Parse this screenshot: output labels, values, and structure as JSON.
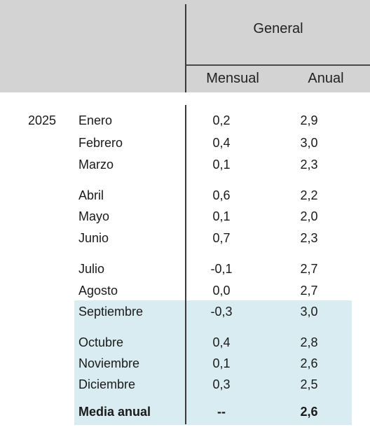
{
  "header": {
    "group_title": "General",
    "col_mensual": "Mensual",
    "col_anual": "Anual"
  },
  "year": "2025",
  "rows": [
    {
      "month": "Enero",
      "mensual": "0,2",
      "anual": "2,9"
    },
    {
      "month": "Febrero",
      "mensual": "0,4",
      "anual": "3,0"
    },
    {
      "month": "Marzo",
      "mensual": "0,1",
      "anual": "2,3"
    },
    {
      "month": "Abril",
      "mensual": "0,6",
      "anual": "2,2"
    },
    {
      "month": "Mayo",
      "mensual": "0,1",
      "anual": "2,0"
    },
    {
      "month": "Junio",
      "mensual": "0,7",
      "anual": "2,3"
    },
    {
      "month": "Julio",
      "mensual": "-0,1",
      "anual": "2,7"
    },
    {
      "month": "Agosto",
      "mensual": "0,0",
      "anual": "2,7"
    },
    {
      "month": "Septiembre",
      "mensual": "-0,3",
      "anual": "3,0"
    },
    {
      "month": "Octubre",
      "mensual": "0,4",
      "anual": "2,8"
    },
    {
      "month": "Noviembre",
      "mensual": "0,1",
      "anual": "2,6"
    },
    {
      "month": "Diciembre",
      "mensual": "0,3",
      "anual": "2,5"
    }
  ],
  "summary": {
    "label": "Media anual",
    "mensual": "--",
    "anual": "2,6"
  },
  "colors": {
    "header_bg": "#d3d3d3",
    "highlight_bg": "#d9ecf2",
    "rule": "#3a3a3a"
  }
}
